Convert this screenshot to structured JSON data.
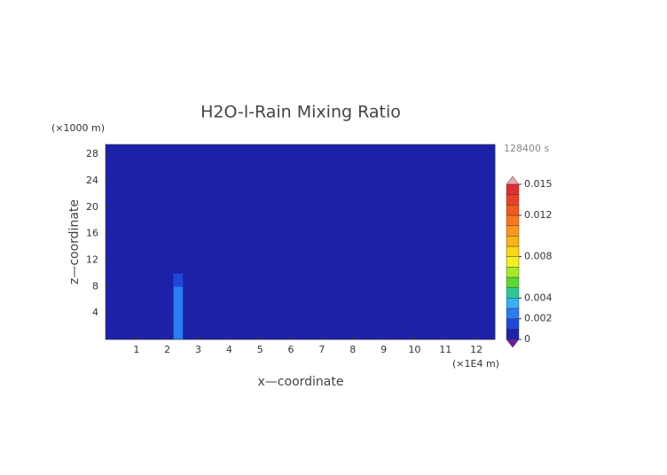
{
  "chart_data": {
    "type": "heatmap",
    "title": "H2O-l-Rain Mixing Ratio",
    "time_label": "128400 s",
    "xlabel": "x—coordinate",
    "ylabel": "z—coordinate",
    "x_unit": "(×1E4 m)",
    "y_unit": "(×1000 m)",
    "xlim": [
      0,
      12.6
    ],
    "ylim": [
      0,
      29.5
    ],
    "xticks": [
      1,
      2,
      3,
      4,
      5,
      6,
      7,
      8,
      9,
      10,
      11,
      12
    ],
    "yticks": [
      4,
      8,
      12,
      16,
      20,
      24,
      28
    ],
    "x_edges": [
      0,
      1,
      2,
      2.2,
      2.5,
      3,
      4,
      5,
      6,
      7,
      8,
      9,
      10,
      11,
      12,
      12.6
    ],
    "z_edges": [
      0,
      2,
      4,
      6,
      8,
      10,
      12,
      29.5
    ],
    "values": [
      [
        0,
        0.0003,
        0,
        0.0022,
        0,
        0,
        0,
        0,
        0,
        0,
        0,
        0,
        0,
        0,
        0
      ],
      [
        0,
        0,
        0,
        0.0022,
        0,
        0,
        0,
        0,
        0,
        0,
        0,
        0,
        0,
        0,
        0
      ],
      [
        0,
        0,
        0,
        0.0022,
        0.0003,
        0,
        0,
        0,
        0,
        0,
        0,
        0,
        0,
        0,
        0
      ],
      [
        0,
        0,
        0.0003,
        0.0022,
        0.0003,
        0,
        0,
        0,
        0,
        0,
        0,
        0,
        0.0003,
        0.0003,
        0
      ],
      [
        0,
        0.0003,
        0.0003,
        0.0015,
        0.0003,
        0.0003,
        0,
        0,
        0,
        0,
        0,
        0.0003,
        0.0003,
        0.0003,
        0.0003
      ],
      [
        0.0003,
        0.0003,
        0.0003,
        0.0003,
        0.0003,
        0.0003,
        0,
        0,
        0,
        0,
        0,
        0.0003,
        0.0003,
        0.0003,
        0.0003
      ],
      [
        0,
        0,
        0,
        0,
        0,
        0,
        0,
        0,
        0,
        0,
        0,
        0,
        0,
        0,
        0
      ]
    ],
    "colorbar": {
      "lim": [
        0,
        0.015
      ],
      "ticks": [
        0,
        0.002,
        0.004,
        0.008,
        0.012,
        0.015
      ],
      "boundaries": [
        0,
        0.001,
        0.002,
        0.003,
        0.004,
        0.005,
        0.006,
        0.007,
        0.008,
        0.009,
        0.01,
        0.011,
        0.012,
        0.013,
        0.014,
        0.015
      ],
      "colors": [
        "#1c22a8",
        "#1f48d8",
        "#2a7cf0",
        "#38b0f0",
        "#30c890",
        "#5ad838",
        "#a8e828",
        "#f0f020",
        "#f8d818",
        "#f8b418",
        "#f89820",
        "#f87820",
        "#f05820",
        "#e84028",
        "#e03030"
      ],
      "over_color": "#f0a0a8",
      "under_color": "#6a1ea0"
    }
  }
}
